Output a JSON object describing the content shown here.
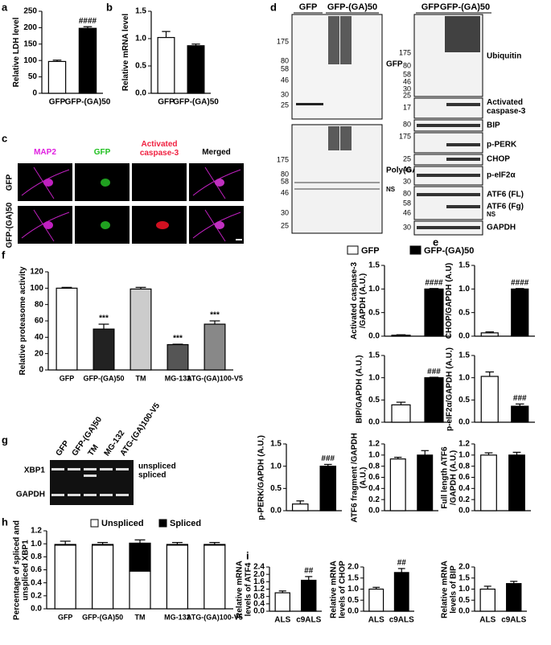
{
  "panel_letters": [
    "a",
    "b",
    "c",
    "d",
    "e",
    "f",
    "g",
    "h",
    "i"
  ],
  "micrograph": {
    "columns": [
      "MAP2",
      "GFP",
      "Activated caspase-3",
      "Merged"
    ],
    "rows": [
      "GFP",
      "GFP-(GA)50"
    ]
  },
  "blots": {
    "lanes": [
      "GFP",
      "GFP-(GA)50"
    ],
    "left_top_markers": [
      175,
      80,
      58,
      46,
      30,
      25
    ],
    "left_top_label": "GFP",
    "left_bottom_markers": [
      175,
      80,
      58,
      46,
      30,
      25
    ],
    "left_bottom_labels": [
      "Poly(GA)",
      "NS"
    ],
    "right_markers": [
      175,
      80,
      58,
      46,
      30,
      25,
      17,
      80,
      175,
      25,
      46,
      30,
      80,
      58,
      46,
      30
    ],
    "right_labels": [
      "Ubiquitin",
      "Activated caspase-3",
      "BIP",
      "p-PERK",
      "CHOP",
      "p-eIF2α",
      "ATF6 (FL)",
      "ATF6 (Fg)",
      "NS",
      "GAPDH"
    ]
  },
  "gel": {
    "lanes": [
      "GFP",
      "GFP-(GA)50",
      "TM",
      "MG-132",
      "ATG-(GA)100-V5"
    ],
    "rows": [
      "XBP1",
      "GAPDH"
    ],
    "bands": [
      "unspliced",
      "spliced"
    ]
  },
  "e_legend": {
    "labels": [
      "GFP",
      "GFP-(GA)50"
    ],
    "colors": [
      "#ffffff",
      "#000000"
    ]
  },
  "chart_data": [
    {
      "type": "bar",
      "ylabel": "Relative LDH level",
      "categories": [
        "GFP",
        "GFP-(GA)50"
      ],
      "values": [
        97,
        198
      ],
      "errors": [
        4,
        5
      ],
      "colors": [
        "#ffffff",
        "#000000"
      ],
      "annotations": [
        null,
        "####"
      ],
      "ylim": [
        0,
        250
      ],
      "yticks": [
        0,
        50,
        100,
        150,
        200,
        250
      ]
    },
    {
      "type": "bar",
      "ylabel": "Relative mRNA level",
      "categories": [
        "GFP",
        "GFP-(GA)50"
      ],
      "values": [
        1.02,
        0.87
      ],
      "errors": [
        0.11,
        0.03
      ],
      "colors": [
        "#ffffff",
        "#000000"
      ],
      "ylim": [
        0,
        1.5
      ],
      "yticks": [
        {
          "value": 0,
          "label": "0.0"
        },
        0.5,
        {
          "value": 1,
          "label": "1.0"
        },
        1.5
      ]
    },
    {
      "type": "bar",
      "ylabel": "Activated caspase-3 /GAPDH (A.U.)",
      "categories": [
        null,
        null
      ],
      "values": [
        0.02,
        1.0
      ],
      "errors": [
        0.01,
        0.01
      ],
      "colors": [
        "#ffffff",
        "#000000"
      ],
      "annotations": [
        null,
        "####"
      ],
      "ylim": [
        0,
        1.5
      ],
      "yticks": [
        {
          "value": 0,
          "label": "0.0"
        },
        0.5,
        {
          "value": 1,
          "label": "1.0"
        },
        1.5
      ]
    },
    {
      "type": "bar",
      "ylabel": "CHOP/GAPDH (A.U)",
      "categories": [
        null,
        null
      ],
      "values": [
        0.07,
        1.0
      ],
      "errors": [
        0.02,
        0.01
      ],
      "colors": [
        "#ffffff",
        "#000000"
      ],
      "annotations": [
        null,
        "####"
      ],
      "ylim": [
        0,
        1.5
      ],
      "yticks": [
        {
          "value": 0,
          "label": "0.0"
        },
        0.5,
        {
          "value": 1,
          "label": "1.0"
        },
        1.5
      ]
    },
    {
      "type": "bar",
      "ylabel": "BIP/GAPDH (A.U.)",
      "categories": [
        null,
        null
      ],
      "values": [
        0.39,
        1.0
      ],
      "errors": [
        0.06,
        0.01
      ],
      "colors": [
        "#ffffff",
        "#000000"
      ],
      "annotations": [
        null,
        "###"
      ],
      "ylim": [
        0,
        1.5
      ],
      "yticks": [
        {
          "value": 0,
          "label": "0.0"
        },
        0.5,
        {
          "value": 1,
          "label": "1.0"
        },
        1.5
      ]
    },
    {
      "type": "bar",
      "ylabel": "p-eIF2α/GAPDH (A.U.)",
      "categories": [
        null,
        null
      ],
      "values": [
        1.03,
        0.36
      ],
      "errors": [
        0.1,
        0.05
      ],
      "colors": [
        "#ffffff",
        "#000000"
      ],
      "annotations": [
        null,
        "###"
      ],
      "ylim": [
        0,
        1.5
      ],
      "yticks": [
        {
          "value": 0,
          "label": "0.0"
        },
        0.5,
        {
          "value": 1,
          "label": "1.0"
        },
        1.5
      ]
    },
    {
      "type": "bar",
      "ylabel": "p-PERK/GAPDH (A.U.)",
      "categories": [
        null,
        null
      ],
      "values": [
        0.15,
        1.0
      ],
      "errors": [
        0.07,
        0.04
      ],
      "colors": [
        "#ffffff",
        "#000000"
      ],
      "annotations": [
        null,
        "###"
      ],
      "ylim": [
        0,
        1.5
      ],
      "yticks": [
        {
          "value": 0,
          "label": "0.0"
        },
        0.5,
        {
          "value": 1,
          "label": "1.0"
        },
        1.5
      ]
    },
    {
      "type": "bar",
      "ylabel": "ATF6 fragment /GAPDH (A.U.)",
      "categories": [
        null,
        null
      ],
      "values": [
        0.93,
        1.0
      ],
      "errors": [
        0.03,
        0.08
      ],
      "colors": [
        "#ffffff",
        "#000000"
      ],
      "ylim": [
        0,
        1.2
      ],
      "yticks": [
        {
          "value": 0,
          "label": "0.0"
        },
        0.2,
        0.4,
        0.6,
        0.8,
        {
          "value": 1,
          "label": "1.0"
        },
        1.2
      ]
    },
    {
      "type": "bar",
      "ylabel": "Full length ATF6 /GAPDH (A.U.)",
      "categories": [
        null,
        null
      ],
      "values": [
        1.0,
        1.0
      ],
      "errors": [
        0.04,
        0.05
      ],
      "colors": [
        "#ffffff",
        "#000000"
      ],
      "ylim": [
        0,
        1.2
      ],
      "yticks": [
        {
          "value": 0,
          "label": "0.0"
        },
        0.2,
        0.4,
        0.6,
        0.8,
        {
          "value": 1,
          "label": "1.0"
        },
        1.2
      ]
    },
    {
      "type": "bar",
      "ylabel": "Relative proteasome activity",
      "categories": [
        "GFP",
        "GFP-(GA)50",
        "TM",
        "MG-132",
        "ATG-(GA)100-V5"
      ],
      "values": [
        100,
        50,
        99,
        31,
        56
      ],
      "errors": [
        1,
        6,
        2,
        0.5,
        4
      ],
      "colors": [
        "#ffffff",
        "#222222",
        "#cccccc",
        "#555555",
        "#888888"
      ],
      "annotations": [
        null,
        "***",
        null,
        "***",
        "***"
      ],
      "ylim": [
        0,
        120
      ],
      "yticks": [
        0,
        20,
        40,
        60,
        80,
        100,
        120
      ]
    },
    {
      "type": "stacked_bar",
      "ylabel": "Percentage of spliced and unspliced XBP1",
      "categories": [
        "GFP",
        "GFP-(GA)50",
        "TM",
        "MG-132",
        "ATG-(GA)100-V5"
      ],
      "series": [
        {
          "name": "Unspliced",
          "color": "#ffffff",
          "values": [
            0.98,
            0.98,
            0.58,
            0.98,
            0.98
          ]
        },
        {
          "name": "Spliced",
          "color": "#000000",
          "values": [
            0.01,
            0.01,
            0.43,
            0.01,
            0.01
          ],
          "errors": [
            0.05,
            0.03,
            0.05,
            0.03,
            0.03
          ]
        }
      ],
      "ylim": [
        0,
        1.2
      ],
      "yticks": [
        {
          "value": 0,
          "label": "0.0"
        },
        0.2,
        0.4,
        0.6,
        0.8,
        {
          "value": 1,
          "label": "1.0"
        },
        1.2
      ]
    },
    {
      "type": "bar",
      "ylabel": "Relative mRNA levels of ATF4",
      "categories": [
        "ALS",
        "c9ALS"
      ],
      "values": [
        1.0,
        1.68
      ],
      "errors": [
        0.1,
        0.2
      ],
      "colors": [
        "#ffffff",
        "#000000"
      ],
      "annotations": [
        null,
        "##"
      ],
      "ylim": [
        0,
        2.4
      ],
      "yticks": [
        {
          "value": 0,
          "label": "0.0"
        },
        0.4,
        0.8,
        1.2,
        1.6,
        {
          "value": 2,
          "label": "2.0"
        },
        2.4
      ]
    },
    {
      "type": "bar",
      "ylabel": "Relative mRNA levels of CHOP",
      "categories": [
        "ALS",
        "c9ALS"
      ],
      "values": [
        1.0,
        1.75
      ],
      "errors": [
        0.08,
        0.18
      ],
      "colors": [
        "#ffffff",
        "#000000"
      ],
      "annotations": [
        null,
        "##"
      ],
      "ylim": [
        0,
        2.0
      ],
      "yticks": [
        {
          "value": 0,
          "label": "0.0"
        },
        0.5,
        {
          "value": 1,
          "label": "1.0"
        },
        1.5,
        {
          "value": 2,
          "label": "2.0"
        }
      ]
    },
    {
      "type": "bar",
      "ylabel": "Relative mRNA levels of BIP",
      "categories": [
        "ALS",
        "c9ALS"
      ],
      "values": [
        1.0,
        1.25
      ],
      "errors": [
        0.13,
        0.1
      ],
      "colors": [
        "#ffffff",
        "#000000"
      ],
      "ylim": [
        0,
        2.0
      ],
      "yticks": [
        {
          "value": 0,
          "label": "0.0"
        },
        0.5,
        {
          "value": 1,
          "label": "1.0"
        },
        1.5,
        {
          "value": 2,
          "label": "2.0"
        }
      ]
    }
  ]
}
